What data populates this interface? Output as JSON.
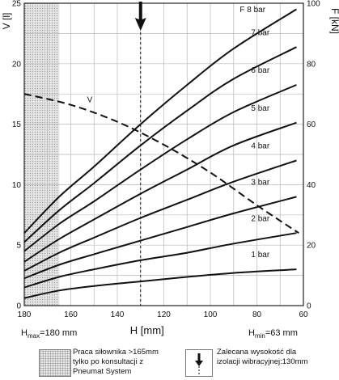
{
  "chart_data": {
    "type": "line",
    "x_axis": {
      "label": "H [mm]",
      "min": 60,
      "max": 180,
      "reversed": true,
      "ticks": [
        180,
        160,
        140,
        120,
        100,
        80,
        60
      ]
    },
    "y_left": {
      "label": "V [l]",
      "min": 0,
      "max": 25,
      "ticks": [
        0,
        5,
        10,
        15,
        20,
        25
      ]
    },
    "y_right": {
      "label": "F [kN]",
      "min": 0,
      "max": 100,
      "ticks": [
        0,
        20,
        40,
        60,
        80,
        100
      ]
    },
    "grid": true,
    "series": [
      {
        "name": "1 bar",
        "axis": "right",
        "x": [
          180,
          165,
          150,
          130,
          110,
          90,
          63
        ],
        "y": [
          2.5,
          5,
          6.5,
          8,
          9.5,
          10.8,
          12
        ]
      },
      {
        "name": "2 bar",
        "axis": "right",
        "x": [
          180,
          165,
          150,
          130,
          110,
          90,
          63
        ],
        "y": [
          6,
          9.5,
          12,
          15,
          17.5,
          20.5,
          24
        ]
      },
      {
        "name": "3 bar",
        "axis": "right",
        "x": [
          180,
          165,
          150,
          130,
          110,
          90,
          63
        ],
        "y": [
          9,
          13.5,
          17,
          21.5,
          26,
          30.5,
          36
        ]
      },
      {
        "name": "4 bar",
        "axis": "right",
        "x": [
          180,
          165,
          150,
          130,
          110,
          90,
          63
        ],
        "y": [
          11.5,
          17.5,
          22.5,
          29,
          35,
          41,
          48
        ]
      },
      {
        "name": "5 bar",
        "axis": "right",
        "x": [
          180,
          165,
          150,
          130,
          110,
          90,
          63
        ],
        "y": [
          14.5,
          22,
          28.5,
          37,
          45,
          53,
          60.5
        ]
      },
      {
        "name": "6 bar",
        "axis": "right",
        "x": [
          180,
          165,
          150,
          130,
          110,
          90,
          63
        ],
        "y": [
          18,
          27,
          34.5,
          45,
          55,
          64,
          73
        ]
      },
      {
        "name": "7 bar",
        "axis": "right",
        "x": [
          180,
          165,
          150,
          130,
          110,
          90,
          63
        ],
        "y": [
          21,
          31.5,
          40.5,
          53,
          64.5,
          75,
          85.5
        ]
      },
      {
        "name": "F 8 bar",
        "axis": "right",
        "x": [
          180,
          165,
          150,
          130,
          110,
          90,
          63
        ],
        "y": [
          24,
          36,
          46,
          60,
          73,
          85,
          98
        ]
      }
    ],
    "volume_curve": {
      "name": "V",
      "axis": "left",
      "style": "dashed",
      "x": [
        180,
        160,
        140,
        120,
        100,
        80,
        62
      ],
      "y": [
        17.5,
        16.6,
        15.2,
        13.3,
        11,
        8.3,
        6
      ]
    },
    "restricted_region": {
      "from": 180,
      "to": 165
    },
    "recommended_height": 130,
    "limits": {
      "h_max": {
        "prefix": "H",
        "sub": "max",
        "text": "=180 mm"
      },
      "h_min": {
        "prefix": "H",
        "sub": "min",
        "text": "=63 mm"
      }
    }
  },
  "legend": {
    "hatched_lines": [
      "Praca siłownika >165mm",
      "tylko po konsultacji z",
      "Pneumat System"
    ],
    "arrow_lines": [
      "Zalecana wysokość dla",
      "izolacji wibracyjnej:130mm"
    ]
  }
}
